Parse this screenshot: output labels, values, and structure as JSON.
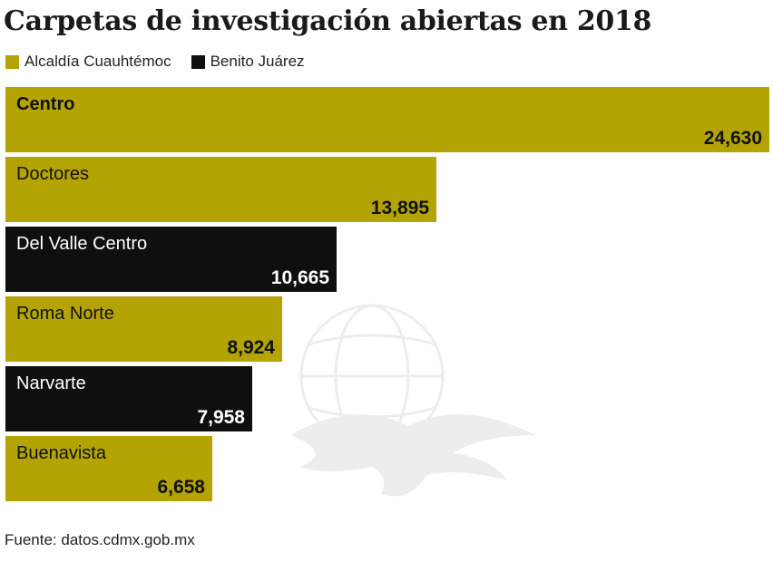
{
  "title": "Carpetas de investigación abiertas en 2018",
  "legend": [
    {
      "label": "Alcaldía Cuauhtémoc",
      "color": "#b3a404"
    },
    {
      "label": "Benito Juárez",
      "color": "#0f0f0f"
    }
  ],
  "source": "Fuente: datos.cdmx.gob.mx",
  "colors": {
    "gold": "#b3a404",
    "black": "#0f0f0f",
    "gold_text": "#111111",
    "black_text": "#ffffff"
  },
  "chart_data": {
    "type": "bar",
    "orientation": "horizontal",
    "title": "Carpetas de investigación abiertas en 2018",
    "categories": [
      "Centro",
      "Doctores",
      "Del Valle Centro",
      "Roma Norte",
      "Narvarte",
      "Buenavista"
    ],
    "values": [
      24630,
      13895,
      10665,
      8924,
      7958,
      6658
    ],
    "value_labels": [
      "24,630",
      "13,895",
      "10,665",
      "8,924",
      "7,958",
      "6,658"
    ],
    "groups": [
      "Alcaldía Cuauhtémoc",
      "Alcaldía Cuauhtémoc",
      "Benito Juárez",
      "Alcaldía Cuauhtémoc",
      "Benito Juárez",
      "Alcaldía Cuauhtémoc"
    ],
    "xlabel": "",
    "ylabel": "",
    "xlim": [
      0,
      24630
    ],
    "grid": false,
    "legend_position": "top-left"
  }
}
